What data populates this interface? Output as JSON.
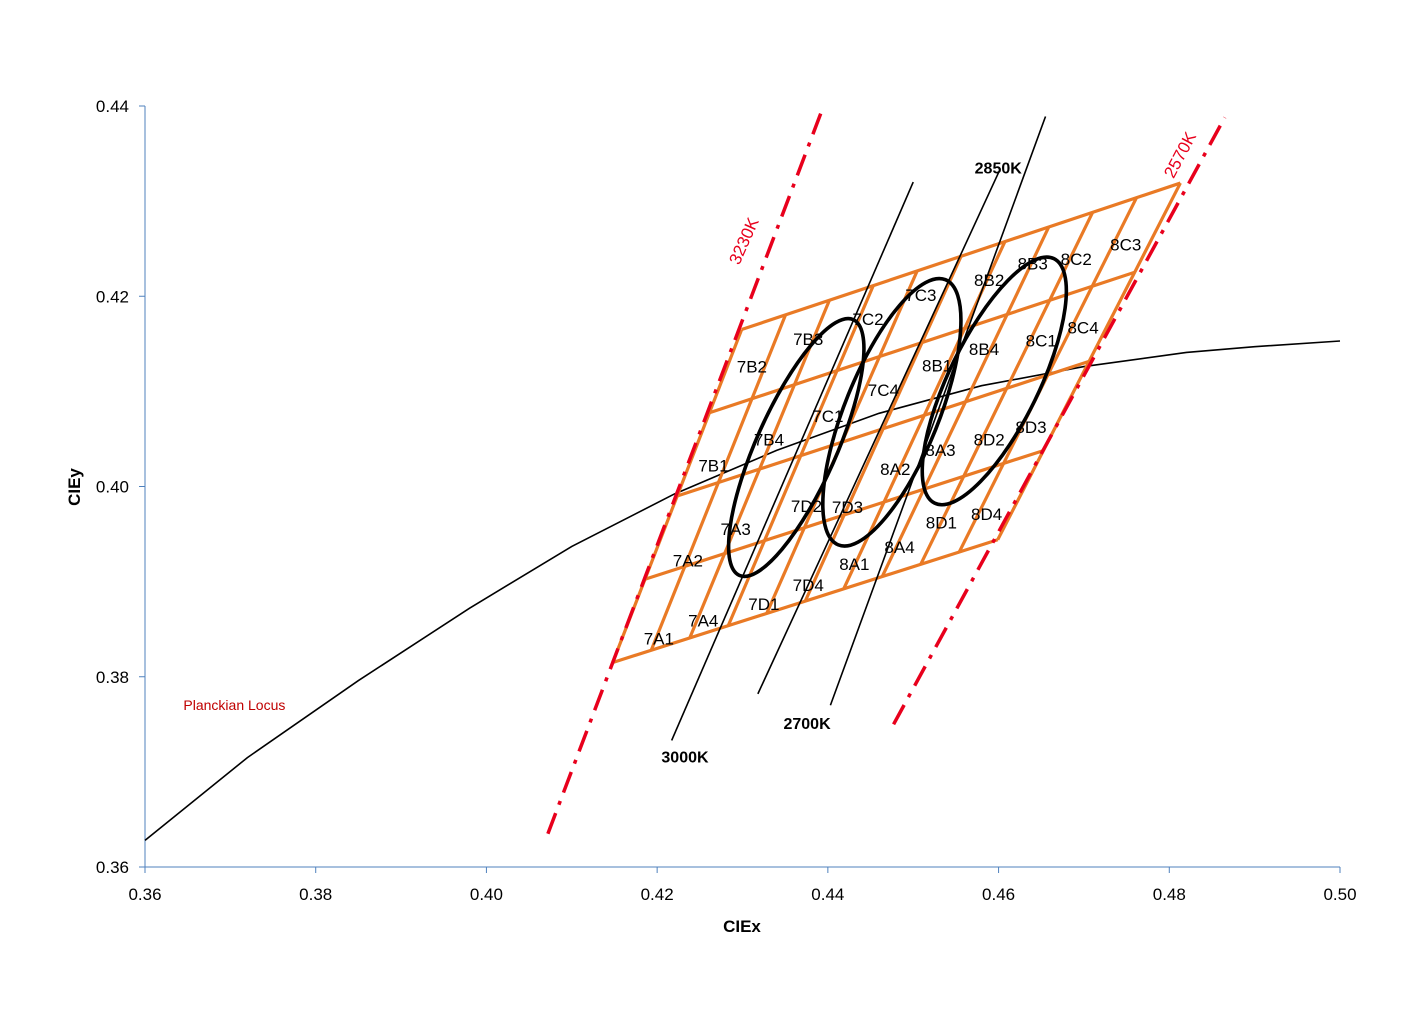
{
  "chart_data": {
    "type": "scatter",
    "xlabel": "CIEx",
    "ylabel": "CIEy",
    "xlim": [
      0.36,
      0.5
    ],
    "ylim": [
      0.36,
      0.44
    ],
    "x_ticks": [
      "0.36",
      "0.38",
      "0.40",
      "0.42",
      "0.44",
      "0.46",
      "0.48",
      "0.50"
    ],
    "y_ticks": [
      "0.36",
      "0.38",
      "0.40",
      "0.42",
      "0.44"
    ],
    "grid": false,
    "colors": {
      "grid_lines": "#e97a25",
      "locus": "#000000",
      "ellipses": "#000000",
      "boundary_lines": "#e8001c",
      "boundary_text": "#e8001c",
      "locus_text": "#c00000"
    },
    "planckian_locus": {
      "label": "Planckian Locus",
      "label_pos": [
        0.3645,
        0.3765
      ],
      "points": [
        [
          0.36,
          0.3628
        ],
        [
          0.372,
          0.3715
        ],
        [
          0.385,
          0.3796
        ],
        [
          0.398,
          0.3872
        ],
        [
          0.41,
          0.3937
        ],
        [
          0.422,
          0.3992
        ],
        [
          0.434,
          0.4038
        ],
        [
          0.446,
          0.4077
        ],
        [
          0.458,
          0.4106
        ],
        [
          0.47,
          0.4126
        ],
        [
          0.482,
          0.4141
        ],
        [
          0.49,
          0.4147
        ],
        [
          0.5,
          0.4153
        ]
      ]
    },
    "bin_grid": {
      "corners": {
        "A": [
          0.4148,
          0.3815
        ],
        "B": [
          0.4299,
          0.4165
        ],
        "C": [
          0.4813,
          0.4319
        ],
        "D": [
          0.4599,
          0.3944
        ]
      },
      "rows": 4,
      "cols": 10
    },
    "cct_lines": [
      {
        "label": "3000K",
        "x1": 0.4217,
        "y1": 0.3733,
        "x2": 0.45,
        "y2": 0.432,
        "label_pos": [
          0.4205,
          0.371
        ]
      },
      {
        "label": "2850K",
        "x1": 0.4318,
        "y1": 0.3782,
        "x2": 0.46,
        "y2": 0.433,
        "label_pos": [
          0.4572,
          0.4329
        ]
      },
      {
        "label": "2700K",
        "x1": 0.4403,
        "y1": 0.377,
        "x2": 0.4655,
        "y2": 0.4389,
        "label_pos": [
          0.4348,
          0.3745
        ]
      }
    ],
    "boundary_lines": [
      {
        "label": "3230K",
        "x1": 0.4072,
        "y1": 0.3635,
        "x2": 0.4395,
        "y2": 0.44,
        "label_pos": [
          0.4296,
          0.4232
        ],
        "label_angle": -66
      },
      {
        "label": "2570K",
        "x1": 0.4477,
        "y1": 0.375,
        "x2": 0.4865,
        "y2": 0.4388,
        "label_pos": [
          0.4805,
          0.4323
        ],
        "label_angle": -62
      }
    ],
    "ellipses": [
      {
        "center": [
          0.4363,
          0.4041
        ],
        "rx": 0.0238,
        "ry": 0.0036,
        "angle": 60
      },
      {
        "center": [
          0.4475,
          0.4078
        ],
        "rx": 0.0249,
        "ry": 0.0037,
        "angle": 59
      },
      {
        "center": [
          0.4595,
          0.4111
        ],
        "rx": 0.0241,
        "ry": 0.0038,
        "angle": 56
      }
    ],
    "bins": [
      {
        "label": "7A1",
        "x": 0.4202,
        "y": 0.3834
      },
      {
        "label": "7A2",
        "x": 0.4236,
        "y": 0.3916
      },
      {
        "label": "7A3",
        "x": 0.4292,
        "y": 0.3949
      },
      {
        "label": "7A4",
        "x": 0.4254,
        "y": 0.3853
      },
      {
        "label": "7B1",
        "x": 0.4266,
        "y": 0.4016
      },
      {
        "label": "7B2",
        "x": 0.4311,
        "y": 0.412
      },
      {
        "label": "7B3",
        "x": 0.4377,
        "y": 0.4149
      },
      {
        "label": "7B4",
        "x": 0.4331,
        "y": 0.4043
      },
      {
        "label": "7C1",
        "x": 0.44,
        "y": 0.4068
      },
      {
        "label": "7C2",
        "x": 0.4447,
        "y": 0.417
      },
      {
        "label": "7C3",
        "x": 0.4509,
        "y": 0.4195
      },
      {
        "label": "7C4",
        "x": 0.4465,
        "y": 0.4095
      },
      {
        "label": "7D1",
        "x": 0.4325,
        "y": 0.387
      },
      {
        "label": "7D2",
        "x": 0.4375,
        "y": 0.3973
      },
      {
        "label": "7D3",
        "x": 0.4423,
        "y": 0.3972
      },
      {
        "label": "7D4",
        "x": 0.4377,
        "y": 0.389
      },
      {
        "label": "8A1",
        "x": 0.4431,
        "y": 0.3912
      },
      {
        "label": "8A2",
        "x": 0.4479,
        "y": 0.4012
      },
      {
        "label": "8A3",
        "x": 0.4532,
        "y": 0.4032
      },
      {
        "label": "8A4",
        "x": 0.4484,
        "y": 0.393
      },
      {
        "label": "8B1",
        "x": 0.4528,
        "y": 0.4121
      },
      {
        "label": "8B2",
        "x": 0.4589,
        "y": 0.4211
      },
      {
        "label": "8B3",
        "x": 0.464,
        "y": 0.4228
      },
      {
        "label": "8B4",
        "x": 0.4583,
        "y": 0.4138
      },
      {
        "label": "8C1",
        "x": 0.465,
        "y": 0.4147
      },
      {
        "label": "8C2",
        "x": 0.4691,
        "y": 0.4233
      },
      {
        "label": "8C3",
        "x": 0.4749,
        "y": 0.4248
      },
      {
        "label": "8C4",
        "x": 0.4699,
        "y": 0.4161
      },
      {
        "label": "8D1",
        "x": 0.4533,
        "y": 0.3956
      },
      {
        "label": "8D2",
        "x": 0.4589,
        "y": 0.4043
      },
      {
        "label": "8D3",
        "x": 0.4638,
        "y": 0.4056
      },
      {
        "label": "8D4",
        "x": 0.4586,
        "y": 0.3965
      }
    ]
  }
}
